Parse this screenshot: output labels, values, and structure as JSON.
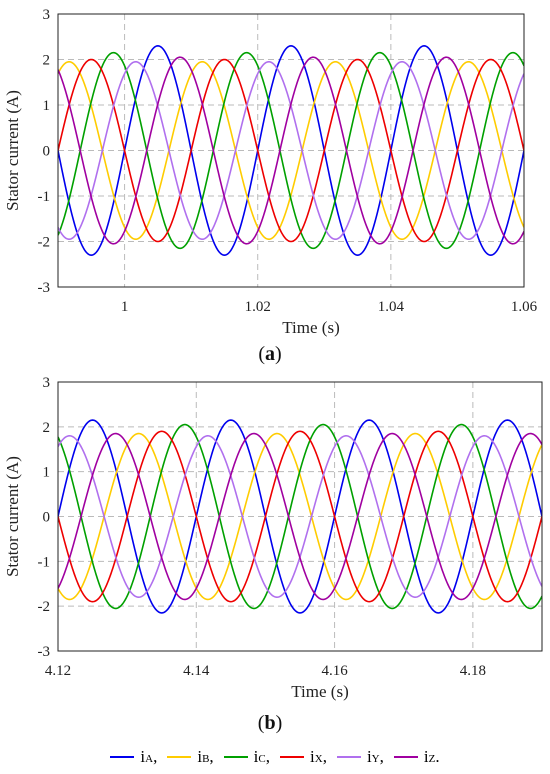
{
  "chart_data": [
    {
      "type": "line",
      "panel_label": "a",
      "xlabel": "Time (s)",
      "ylabel": "Stator current (A)",
      "xlim": [
        0.99,
        1.06
      ],
      "ylim": [
        -3,
        3
      ],
      "xticks": [
        "1",
        "1.02",
        "1.04",
        "1.06"
      ],
      "xtick_values": [
        1.0,
        1.02,
        1.04,
        1.06
      ],
      "yticks": [
        "3",
        "2",
        "1",
        "0",
        "-1",
        "-2",
        "-3"
      ],
      "ytick_values": [
        3,
        2,
        1,
        0,
        -1,
        -2,
        -3
      ],
      "grid": true,
      "frequency_hz": 50,
      "series": [
        {
          "name": "iA",
          "color": "#0000ee",
          "amplitude": 2.3,
          "phase_deg": 0
        },
        {
          "name": "iB",
          "color": "#ffcc00",
          "amplitude": 1.95,
          "phase_deg": -120
        },
        {
          "name": "iC",
          "color": "#00a000",
          "amplitude": 2.15,
          "phase_deg": -240
        },
        {
          "name": "iX",
          "color": "#ee0000",
          "amplitude": 2.0,
          "phase_deg": -180
        },
        {
          "name": "iY",
          "color": "#b070ee",
          "amplitude": 1.95,
          "phase_deg": -300
        },
        {
          "name": "iZ",
          "color": "#a000a0",
          "amplitude": 2.05,
          "phase_deg": -60
        }
      ]
    },
    {
      "type": "line",
      "panel_label": "b",
      "xlabel": "Time (s)",
      "ylabel": "Stator current (A)",
      "xlim": [
        4.12,
        4.19
      ],
      "ylim": [
        -3,
        3
      ],
      "xticks": [
        "4.12",
        "4.14",
        "4.16",
        "4.18"
      ],
      "xtick_values": [
        4.12,
        4.14,
        4.16,
        4.18
      ],
      "yticks": [
        "3",
        "2",
        "1",
        "0",
        "-1",
        "-2",
        "-3"
      ],
      "ytick_values": [
        3,
        2,
        1,
        0,
        -1,
        -2,
        -3
      ],
      "grid": true,
      "frequency_hz": 50,
      "series": [
        {
          "name": "iA",
          "color": "#0000ee",
          "amplitude": 2.15,
          "phase_deg": 0
        },
        {
          "name": "iB",
          "color": "#ffcc00",
          "amplitude": 1.85,
          "phase_deg": -120
        },
        {
          "name": "iC",
          "color": "#00a000",
          "amplitude": 2.05,
          "phase_deg": -240
        },
        {
          "name": "iX",
          "color": "#ee0000",
          "amplitude": 1.9,
          "phase_deg": -180
        },
        {
          "name": "iY",
          "color": "#b070ee",
          "amplitude": 1.8,
          "phase_deg": -300
        },
        {
          "name": "iZ",
          "color": "#a000a0",
          "amplitude": 1.85,
          "phase_deg": -60
        }
      ]
    }
  ],
  "legend": [
    {
      "letter": "i",
      "sub": "A",
      "sep": ",",
      "color": "#0000ee"
    },
    {
      "letter": "i",
      "sub": "B",
      "sep": ",",
      "color": "#ffcc00"
    },
    {
      "letter": "i",
      "sub": "C",
      "sep": ",",
      "color": "#00a000"
    },
    {
      "letter": "i",
      "sub": "X",
      "sep": ",",
      "color": "#ee0000"
    },
    {
      "letter": "i",
      "sub": "Y",
      "sep": ",",
      "color": "#b070ee"
    },
    {
      "letter": "i",
      "sub": "Z",
      "sep": ".",
      "color": "#a000a0"
    }
  ]
}
